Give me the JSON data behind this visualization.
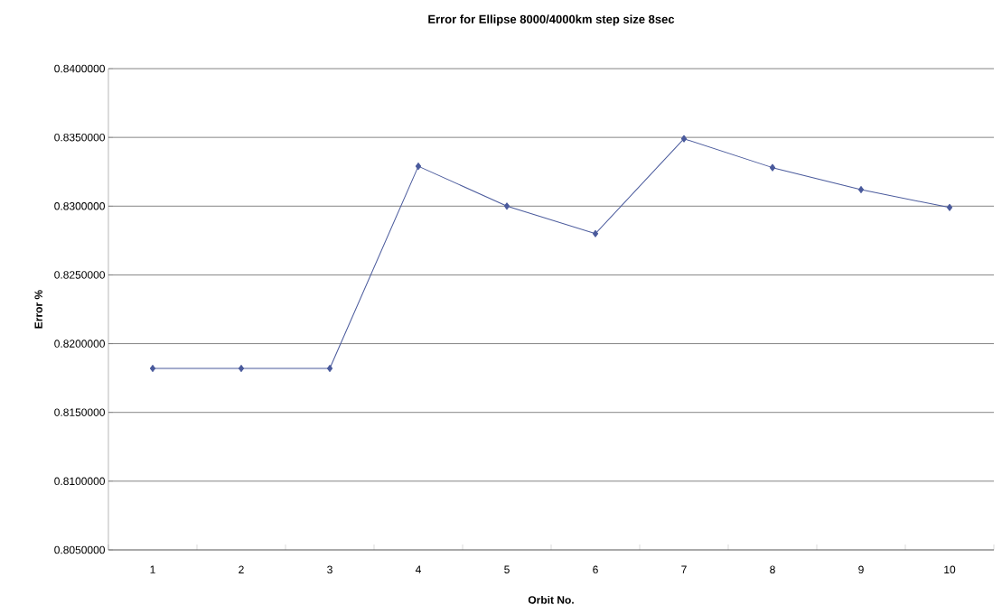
{
  "chart_data": {
    "type": "line",
    "title": "Error for Ellipse 8000/4000km step size 8sec",
    "xlabel": "Orbit No.",
    "ylabel": "Error %",
    "categories": [
      "1",
      "2",
      "3",
      "4",
      "5",
      "6",
      "7",
      "8",
      "9",
      "10"
    ],
    "values": [
      0.8182,
      0.8182,
      0.8182,
      0.8329,
      0.83,
      0.828,
      0.8349,
      0.8328,
      0.8312,
      0.8299
    ],
    "color": "#4a5a9c",
    "ylim": [
      0.805,
      0.84
    ],
    "yticks": [
      {
        "value": 0.805,
        "label": "0.8050000"
      },
      {
        "value": 0.81,
        "label": "0.8100000"
      },
      {
        "value": 0.815,
        "label": "0.8150000"
      },
      {
        "value": 0.82,
        "label": "0.8200000"
      },
      {
        "value": 0.825,
        "label": "0.8250000"
      },
      {
        "value": 0.83,
        "label": "0.8300000"
      },
      {
        "value": 0.835,
        "label": "0.8350000"
      },
      {
        "value": 0.84,
        "label": "0.8400000"
      }
    ],
    "grid": "y",
    "marker": "diamond",
    "line_style": "solid"
  }
}
